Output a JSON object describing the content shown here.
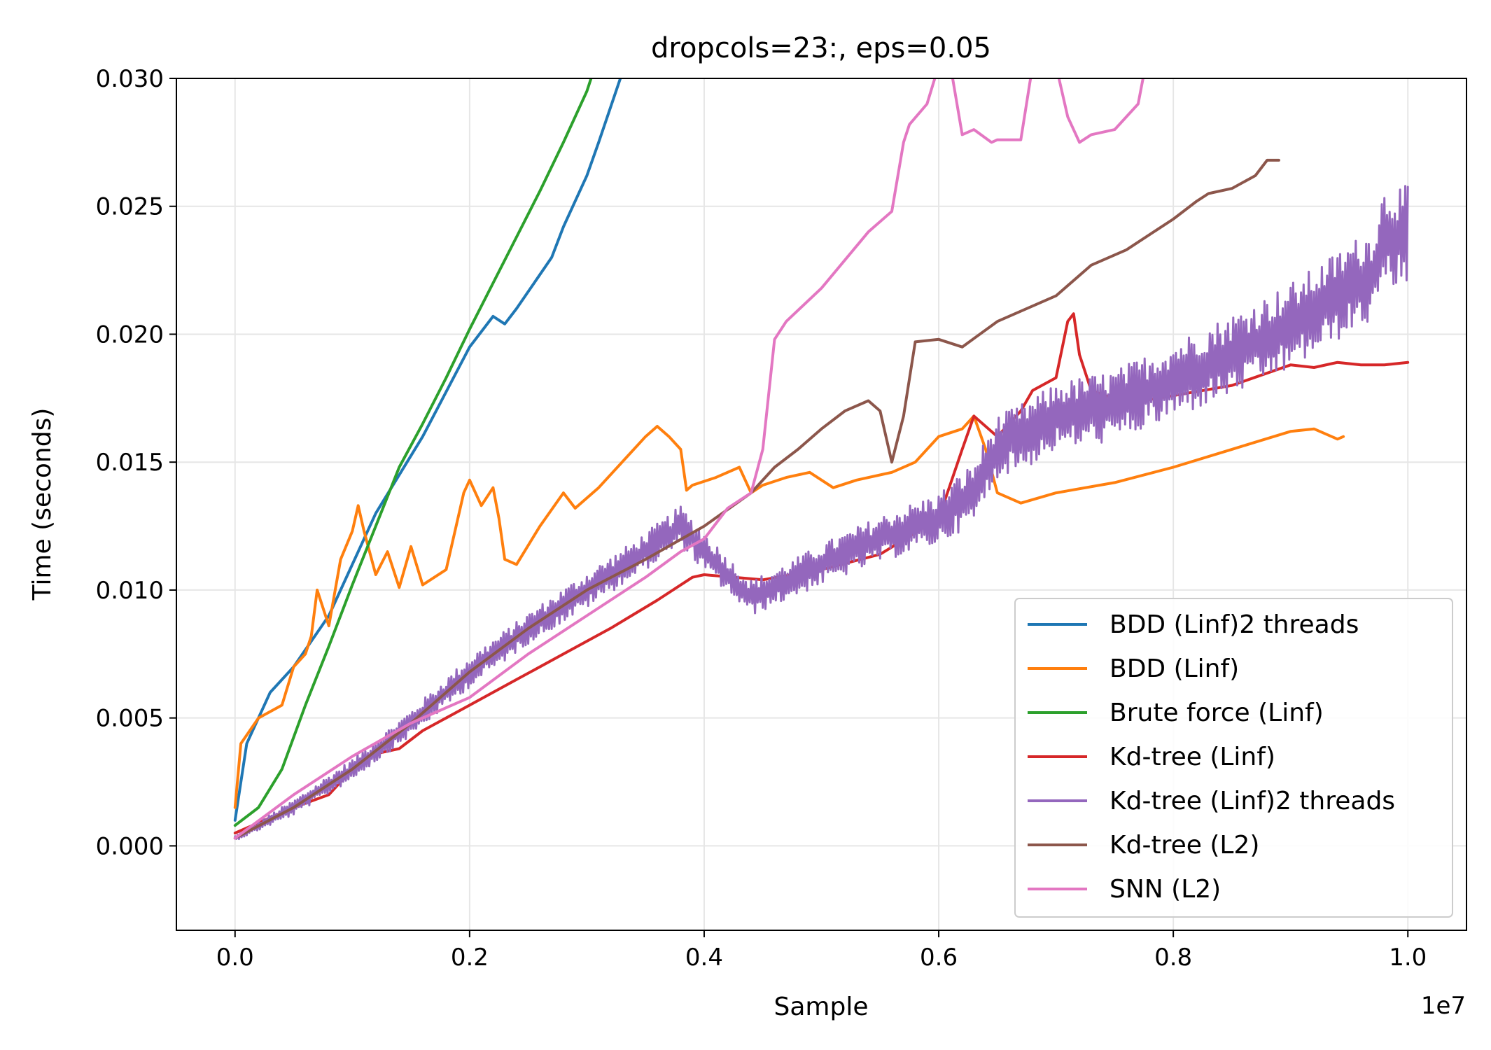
{
  "chart_data": {
    "type": "line",
    "title": "dropcols=23:, eps=0.05",
    "xlabel": "Sample",
    "ylabel": "Time (seconds)",
    "x_offset_label": "1e7",
    "xlim": [
      -0.05,
      1.05
    ],
    "ylim": [
      -0.0033,
      0.03
    ],
    "x_ticks": [
      0.0,
      0.2,
      0.4,
      0.6,
      0.8,
      1.0
    ],
    "x_tick_labels": [
      "0.0",
      "0.2",
      "0.4",
      "0.6",
      "0.8",
      "1.0"
    ],
    "y_ticks": [
      0.0,
      0.005,
      0.01,
      0.015,
      0.02,
      0.025,
      0.03
    ],
    "y_tick_labels": [
      "0.000",
      "0.005",
      "0.010",
      "0.015",
      "0.020",
      "0.025",
      "0.030"
    ],
    "grid": true,
    "legend_position": "lower-right",
    "series": [
      {
        "name": "BDD (Linf)2 threads",
        "color": "#1f77b4",
        "x": [
          0.0,
          0.01,
          0.03,
          0.05,
          0.08,
          0.12,
          0.16,
          0.2,
          0.22,
          0.23,
          0.24,
          0.27,
          0.28,
          0.3,
          0.31,
          0.33
        ],
        "y": [
          0.001,
          0.004,
          0.006,
          0.007,
          0.009,
          0.013,
          0.016,
          0.0195,
          0.0207,
          0.0204,
          0.021,
          0.023,
          0.0242,
          0.0262,
          0.0275,
          0.0302
        ]
      },
      {
        "name": "BDD (Linf)",
        "color": "#ff7f0e",
        "x": [
          0.0,
          0.005,
          0.02,
          0.04,
          0.05,
          0.06,
          0.065,
          0.07,
          0.08,
          0.09,
          0.1,
          0.105,
          0.11,
          0.12,
          0.13,
          0.14,
          0.15,
          0.16,
          0.18,
          0.195,
          0.2,
          0.21,
          0.22,
          0.225,
          0.23,
          0.24,
          0.26,
          0.28,
          0.29,
          0.31,
          0.33,
          0.35,
          0.36,
          0.37,
          0.38,
          0.385,
          0.39,
          0.41,
          0.43,
          0.44,
          0.45,
          0.47,
          0.49,
          0.51,
          0.53,
          0.56,
          0.58,
          0.6,
          0.62,
          0.63,
          0.64,
          0.65,
          0.67,
          0.7,
          0.75,
          0.8,
          0.85,
          0.9,
          0.92,
          0.94,
          0.945
        ],
        "y": [
          0.0015,
          0.004,
          0.005,
          0.0055,
          0.007,
          0.0075,
          0.0082,
          0.01,
          0.0086,
          0.0112,
          0.0123,
          0.0133,
          0.0123,
          0.0106,
          0.0115,
          0.0101,
          0.0117,
          0.0102,
          0.0108,
          0.0138,
          0.0143,
          0.0133,
          0.014,
          0.0128,
          0.0112,
          0.011,
          0.0125,
          0.0138,
          0.0132,
          0.014,
          0.015,
          0.016,
          0.0164,
          0.016,
          0.0155,
          0.0139,
          0.0141,
          0.0144,
          0.0148,
          0.0138,
          0.0141,
          0.0144,
          0.0146,
          0.014,
          0.0143,
          0.0146,
          0.015,
          0.016,
          0.0163,
          0.0168,
          0.0155,
          0.0138,
          0.0134,
          0.0138,
          0.0142,
          0.0148,
          0.0155,
          0.0162,
          0.0163,
          0.0159,
          0.016
        ]
      },
      {
        "name": "Brute force (Linf)",
        "color": "#2ca02c",
        "x": [
          0.0,
          0.02,
          0.04,
          0.06,
          0.08,
          0.1,
          0.12,
          0.14,
          0.16,
          0.18,
          0.2,
          0.22,
          0.24,
          0.26,
          0.28,
          0.3,
          0.305
        ],
        "y": [
          0.0008,
          0.0015,
          0.003,
          0.0055,
          0.0078,
          0.0102,
          0.0125,
          0.0148,
          0.0165,
          0.0183,
          0.0202,
          0.022,
          0.0238,
          0.0256,
          0.0275,
          0.0295,
          0.0302
        ]
      },
      {
        "name": "Kd-tree (Linf)",
        "color": "#d62728",
        "x": [
          0.0,
          0.05,
          0.08,
          0.1,
          0.12,
          0.14,
          0.16,
          0.2,
          0.24,
          0.28,
          0.32,
          0.36,
          0.39,
          0.4,
          0.45,
          0.5,
          0.55,
          0.6,
          0.62,
          0.63,
          0.65,
          0.67,
          0.68,
          0.7,
          0.71,
          0.715,
          0.72,
          0.73,
          0.76,
          0.8,
          0.85,
          0.9,
          0.92,
          0.94,
          0.96,
          0.98,
          1.0
        ],
        "y": [
          0.0005,
          0.0015,
          0.002,
          0.003,
          0.0036,
          0.0038,
          0.0045,
          0.0055,
          0.0065,
          0.0075,
          0.0085,
          0.0096,
          0.0105,
          0.0106,
          0.0104,
          0.0108,
          0.0114,
          0.0128,
          0.0155,
          0.0168,
          0.016,
          0.017,
          0.0178,
          0.0183,
          0.0205,
          0.0208,
          0.0192,
          0.0178,
          0.0173,
          0.0176,
          0.018,
          0.0188,
          0.0187,
          0.0189,
          0.0188,
          0.0188,
          0.0189
        ]
      },
      {
        "name": "Kd-tree (Linf)2 threads",
        "color": "#9467bd",
        "x": [
          0.0,
          0.05,
          0.1,
          0.15,
          0.2,
          0.25,
          0.3,
          0.32,
          0.34,
          0.38,
          0.4,
          0.42,
          0.44,
          0.46,
          0.5,
          0.55,
          0.6,
          0.63,
          0.65,
          0.68,
          0.7,
          0.75,
          0.8,
          0.85,
          0.9,
          0.93,
          0.95,
          0.97,
          0.98,
          1.0
        ],
        "y": [
          0.0003,
          0.0015,
          0.003,
          0.0048,
          0.0068,
          0.0085,
          0.01,
          0.0106,
          0.0112,
          0.0125,
          0.0115,
          0.0106,
          0.0097,
          0.0101,
          0.011,
          0.012,
          0.0128,
          0.0138,
          0.0156,
          0.0162,
          0.0168,
          0.0172,
          0.0182,
          0.0192,
          0.0203,
          0.0212,
          0.0218,
          0.0223,
          0.0238,
          0.0238
        ],
        "jitter": [
          0.0001,
          0.0003,
          0.0004,
          0.0005,
          0.0006,
          0.0006,
          0.0007,
          0.0007,
          0.0007,
          0.0008,
          0.0008,
          0.0007,
          0.0007,
          0.0007,
          0.0008,
          0.0009,
          0.001,
          0.0012,
          0.0012,
          0.0013,
          0.0013,
          0.0014,
          0.0015,
          0.0016,
          0.0017,
          0.0017,
          0.0018,
          0.0018,
          0.002,
          0.002
        ]
      },
      {
        "name": "Kd-tree (L2)",
        "color": "#8c564b",
        "x": [
          0.0,
          0.05,
          0.1,
          0.15,
          0.2,
          0.25,
          0.3,
          0.35,
          0.4,
          0.44,
          0.46,
          0.48,
          0.5,
          0.52,
          0.54,
          0.55,
          0.56,
          0.57,
          0.58,
          0.6,
          0.62,
          0.65,
          0.7,
          0.73,
          0.76,
          0.8,
          0.82,
          0.83,
          0.85,
          0.87,
          0.88,
          0.89
        ],
        "y": [
          0.0003,
          0.0015,
          0.003,
          0.0048,
          0.0068,
          0.0085,
          0.01,
          0.0112,
          0.0125,
          0.0138,
          0.0148,
          0.0155,
          0.0163,
          0.017,
          0.0174,
          0.017,
          0.015,
          0.0168,
          0.0197,
          0.0198,
          0.0195,
          0.0205,
          0.0215,
          0.0227,
          0.0233,
          0.0245,
          0.0252,
          0.0255,
          0.0257,
          0.0262,
          0.0268,
          0.0268
        ]
      },
      {
        "name": "SNN (L2)",
        "color": "#e377c2",
        "x": [
          0.0,
          0.05,
          0.1,
          0.15,
          0.2,
          0.25,
          0.3,
          0.35,
          0.38,
          0.4,
          0.42,
          0.44,
          0.45,
          0.46,
          0.47,
          0.5,
          0.54,
          0.56,
          0.57,
          0.575,
          0.59,
          0.6,
          0.61,
          0.62,
          0.63,
          0.645,
          0.65,
          0.67,
          0.68,
          0.69,
          0.7,
          0.71,
          0.72,
          0.73,
          0.75,
          0.77,
          0.775
        ],
        "y": [
          0.0003,
          0.002,
          0.0035,
          0.0048,
          0.0058,
          0.0075,
          0.009,
          0.0105,
          0.0115,
          0.012,
          0.0132,
          0.0138,
          0.0155,
          0.0198,
          0.0205,
          0.0218,
          0.024,
          0.0248,
          0.0275,
          0.0282,
          0.029,
          0.0305,
          0.0305,
          0.0278,
          0.028,
          0.0275,
          0.0276,
          0.0276,
          0.0305,
          0.0305,
          0.0305,
          0.0285,
          0.0275,
          0.0278,
          0.028,
          0.029,
          0.0302
        ]
      }
    ]
  }
}
